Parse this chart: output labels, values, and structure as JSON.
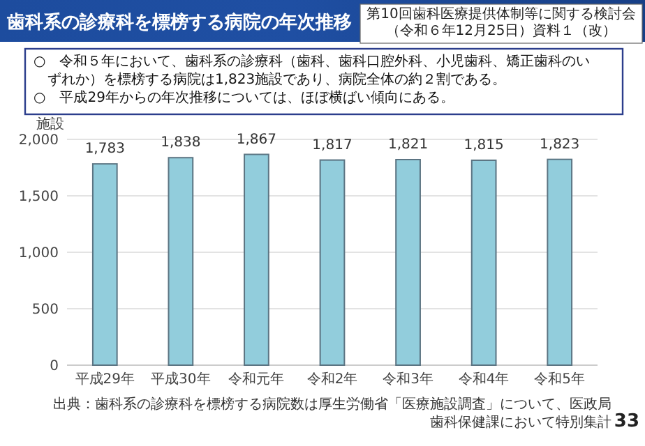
{
  "chart_data": {
    "type": "bar",
    "title": "歯科系の診療科を標榜する病院の年次推移",
    "ylabel": "施設",
    "categories": [
      "平成29年",
      "平成30年",
      "令和元年",
      "令和2年",
      "令和3年",
      "令和4年",
      "令和5年"
    ],
    "values": [
      1783,
      1838,
      1867,
      1817,
      1821,
      1815,
      1823
    ],
    "color": "#92cddc",
    "ylim": [
      0,
      2000
    ],
    "yticks": [
      0,
      500,
      {
        "value": 1000,
        "label": "1,000"
      },
      {
        "value": 1500,
        "label": "1,500"
      },
      {
        "value": 2000,
        "label": "2,000"
      }
    ],
    "grid": "y",
    "value_labels": [
      "1,783",
      "1,838",
      "1,867",
      "1,817",
      "1,821",
      "1,815",
      "1,823"
    ],
    "annotations": [
      "第10回歯科医療提供体制等に関する検討会（令和６年12月25日）資料１（改）",
      "○　令和５年において、歯科系の診療科（歯科、歯科口腔外科、小児歯科、矯正歯科のいずれか）を標榜する病院は1,823施設であり、病院全体の約２割である。",
      "○　平成29年からの年次推移については、ほぼ横ばい傾向にある。",
      "出典：歯科系の診療科を標榜する病院数は厚生労働省「医療施設調査」について、医政局歯科保健課において特別集計",
      "33"
    ]
  }
}
